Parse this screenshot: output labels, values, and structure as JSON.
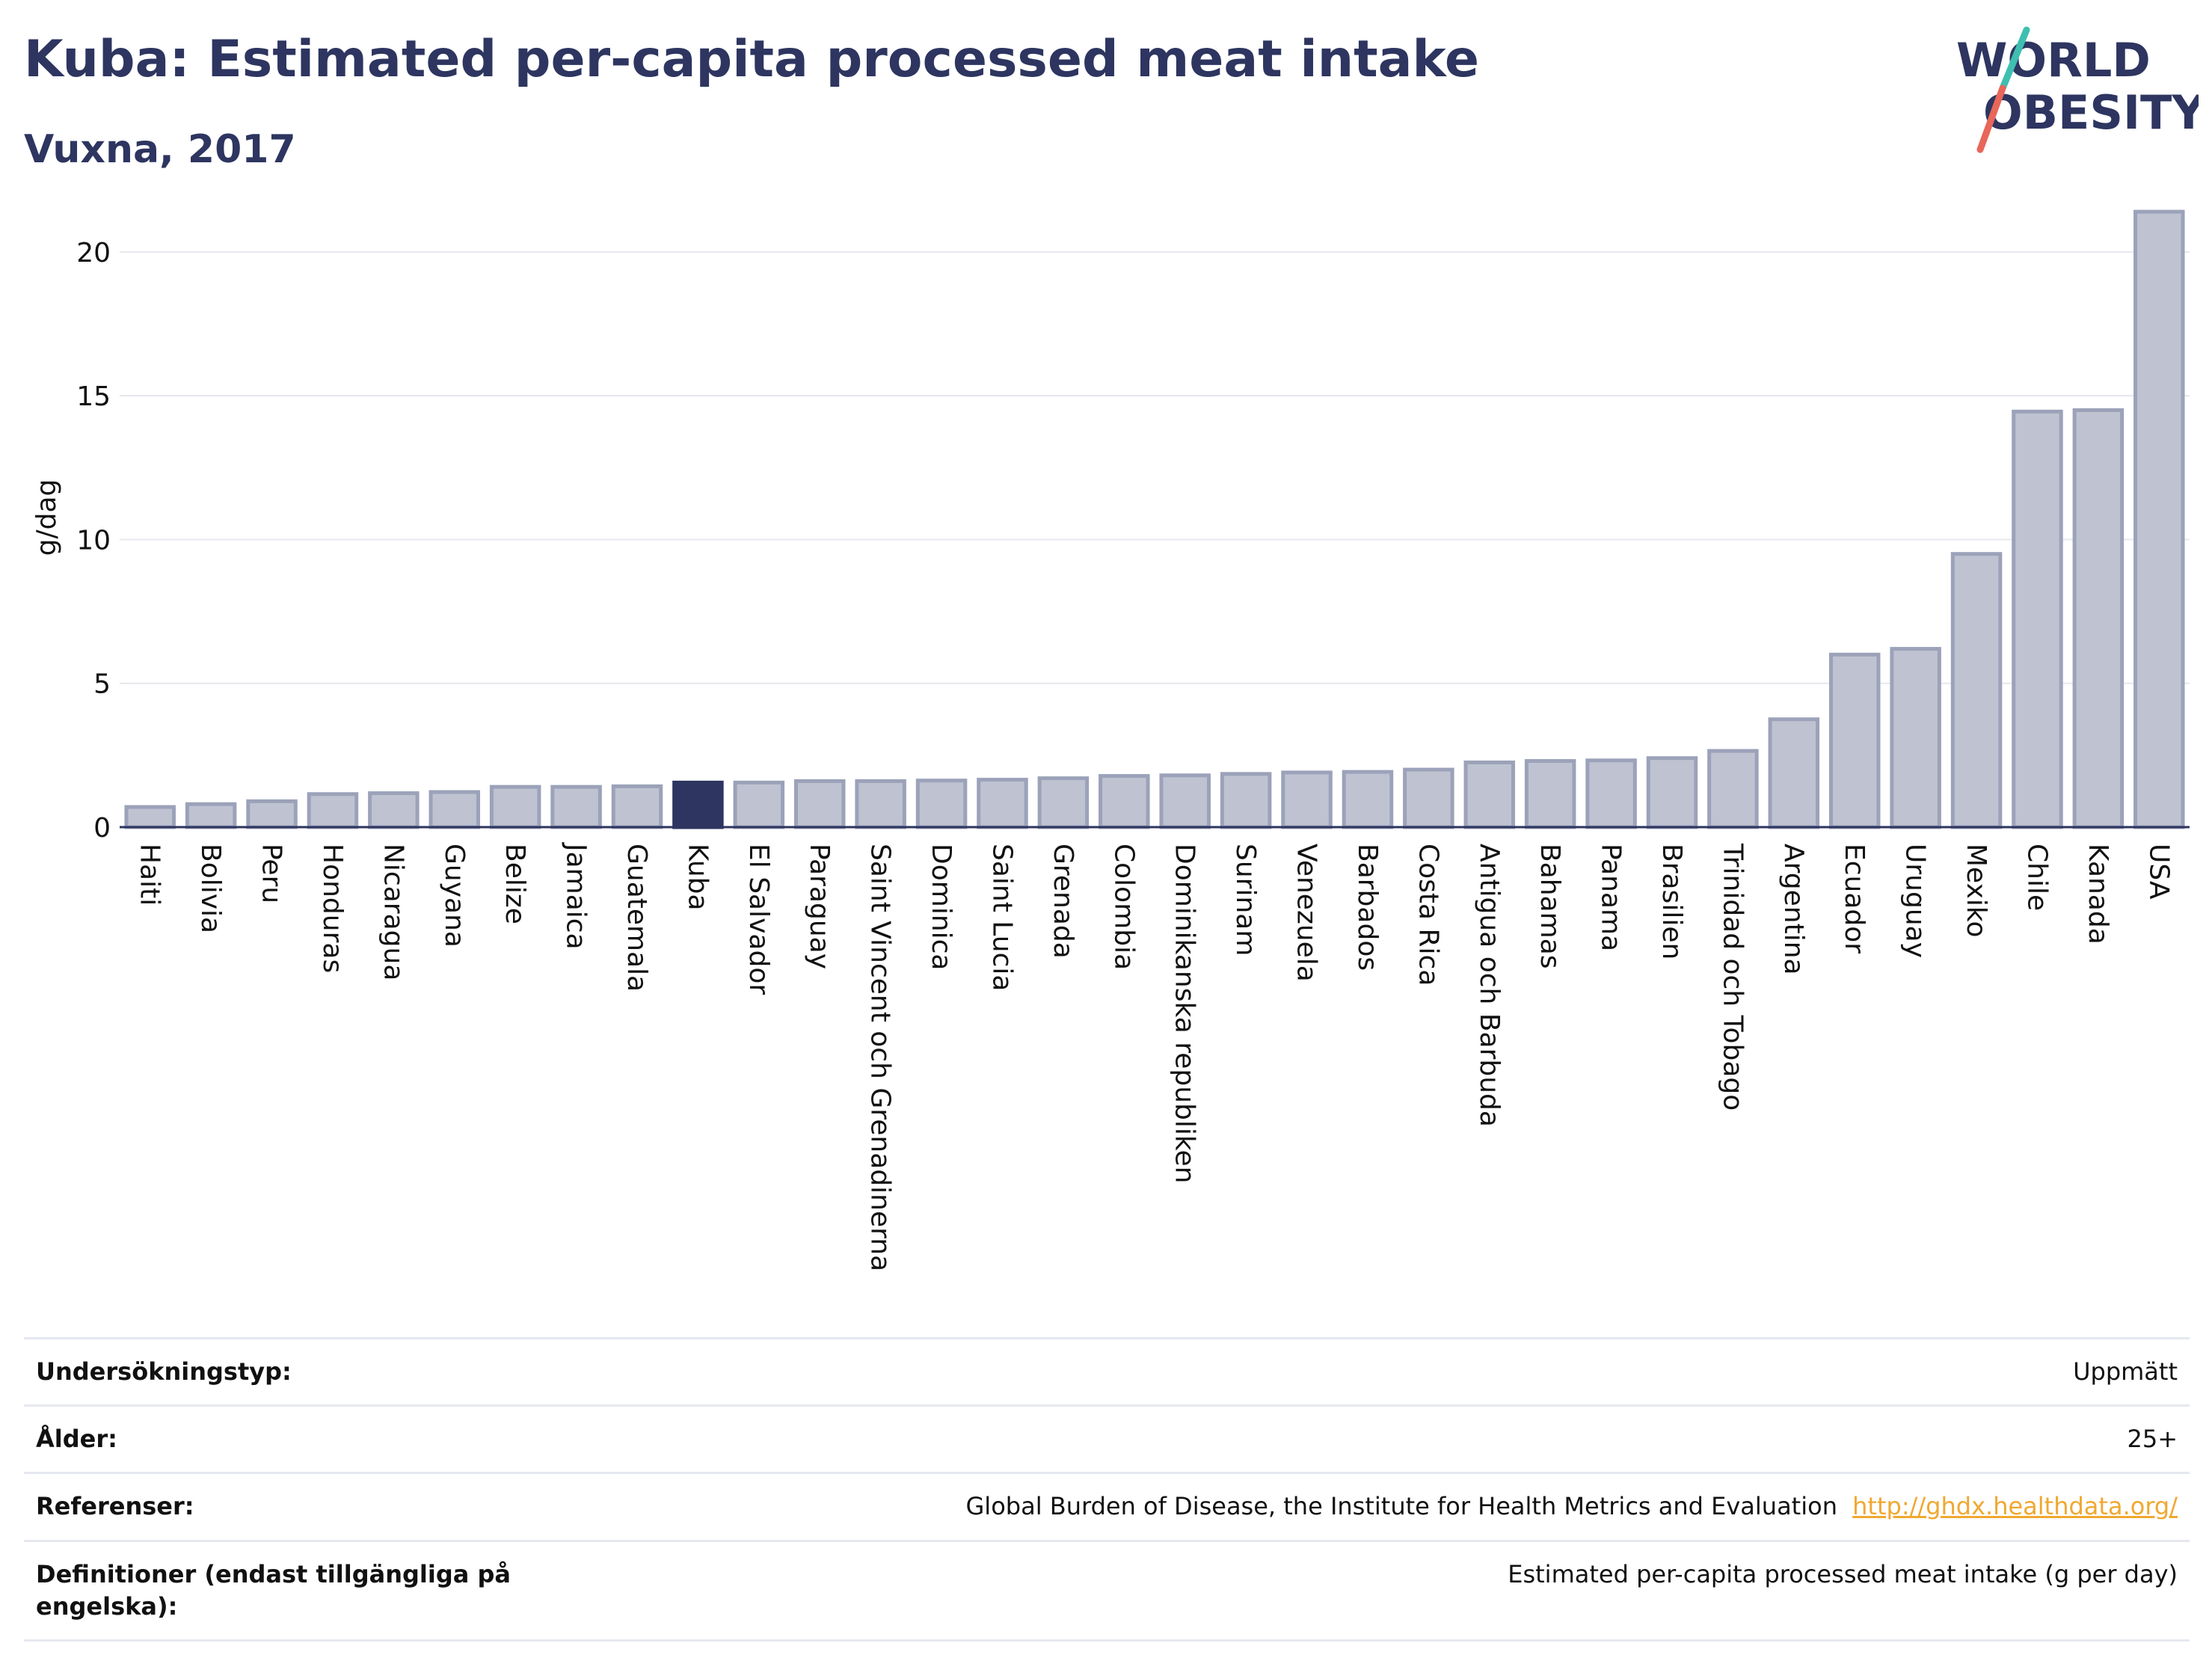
{
  "header": {
    "title": "Kuba: Estimated per-capita processed meat intake",
    "subtitle": "Vuxna, 2017"
  },
  "logo": {
    "line1": "WORLD",
    "line2": "OBESITY"
  },
  "colors": {
    "bar": "#bfc3d1",
    "bar_border": "#9ba2b9",
    "highlight": "#2d3560",
    "title": "#2d3560",
    "accent_teal": "#3fbfb0",
    "accent_red": "#e8665a",
    "link": "#f0a830"
  },
  "chart_data": {
    "type": "bar",
    "ylabel": "g/dag",
    "ylim": [
      0,
      22
    ],
    "yticks": [
      0,
      5,
      10,
      15,
      20
    ],
    "grid": true,
    "highlight": "Kuba",
    "categories": [
      "Haiti",
      "Bolivia",
      "Peru",
      "Honduras",
      "Nicaragua",
      "Guyana",
      "Belize",
      "Jamaica",
      "Guatemala",
      "Kuba",
      "El Salvador",
      "Paraguay",
      "Saint Vincent och Grenadinerna",
      "Dominica",
      "Saint Lucia",
      "Grenada",
      "Colombia",
      "Dominikanska republiken",
      "Surinam",
      "Venezuela",
      "Barbados",
      "Costa Rica",
      "Antigua och Barbuda",
      "Bahamas",
      "Panama",
      "Brasilien",
      "Trinidad och Tobago",
      "Argentina",
      "Ecuador",
      "Uruguay",
      "Mexiko",
      "Chile",
      "Kanada",
      "USA"
    ],
    "values": [
      0.7,
      0.8,
      0.9,
      1.15,
      1.18,
      1.22,
      1.4,
      1.4,
      1.42,
      1.55,
      1.55,
      1.6,
      1.6,
      1.62,
      1.65,
      1.7,
      1.78,
      1.8,
      1.85,
      1.9,
      1.92,
      2.0,
      2.25,
      2.3,
      2.32,
      2.4,
      2.65,
      3.75,
      6.0,
      6.2,
      9.5,
      14.45,
      14.5,
      21.4
    ]
  },
  "info": [
    {
      "label": "Undersökningstyp:",
      "value": "Uppmätt"
    },
    {
      "label": "Ålder:",
      "value": "25+"
    },
    {
      "label": "Referenser:",
      "value": "Global Burden of Disease, the Institute for Health Metrics and Evaluation",
      "link": "http://ghdx.healthdata.org/"
    },
    {
      "label": "Definitioner (endast tillgängliga på engelska):",
      "value": "Estimated per-capita processed meat intake (g per day)"
    }
  ]
}
